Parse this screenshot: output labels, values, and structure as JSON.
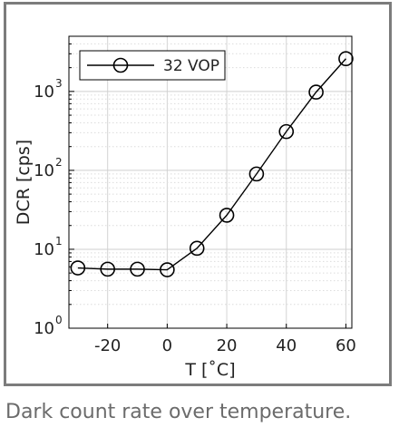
{
  "caption": "Dark count rate over temperature.",
  "chart_data": {
    "type": "line",
    "xlabel": "T [˚C]",
    "ylabel": "DCR [cps]",
    "xlim": [
      -33,
      62
    ],
    "ylim": [
      1,
      5000
    ],
    "yscale": "log",
    "grid": true,
    "x_ticks": [
      -20,
      0,
      20,
      40,
      60
    ],
    "y_ticks": [
      {
        "base": "10",
        "exp": "0",
        "value": 1
      },
      {
        "base": "10",
        "exp": "1",
        "value": 10
      },
      {
        "base": "10",
        "exp": "2",
        "value": 100
      },
      {
        "base": "10",
        "exp": "3",
        "value": 1000
      }
    ],
    "legend_position": "top-left",
    "series": [
      {
        "name": "32 VOP",
        "color": "#000000",
        "marker": "open-circle",
        "x": [
          -30,
          -20,
          -10,
          0,
          10,
          20,
          30,
          40,
          50,
          60
        ],
        "y": [
          5.8,
          5.6,
          5.6,
          5.5,
          10.3,
          27,
          90,
          310,
          980,
          2600
        ]
      }
    ]
  }
}
